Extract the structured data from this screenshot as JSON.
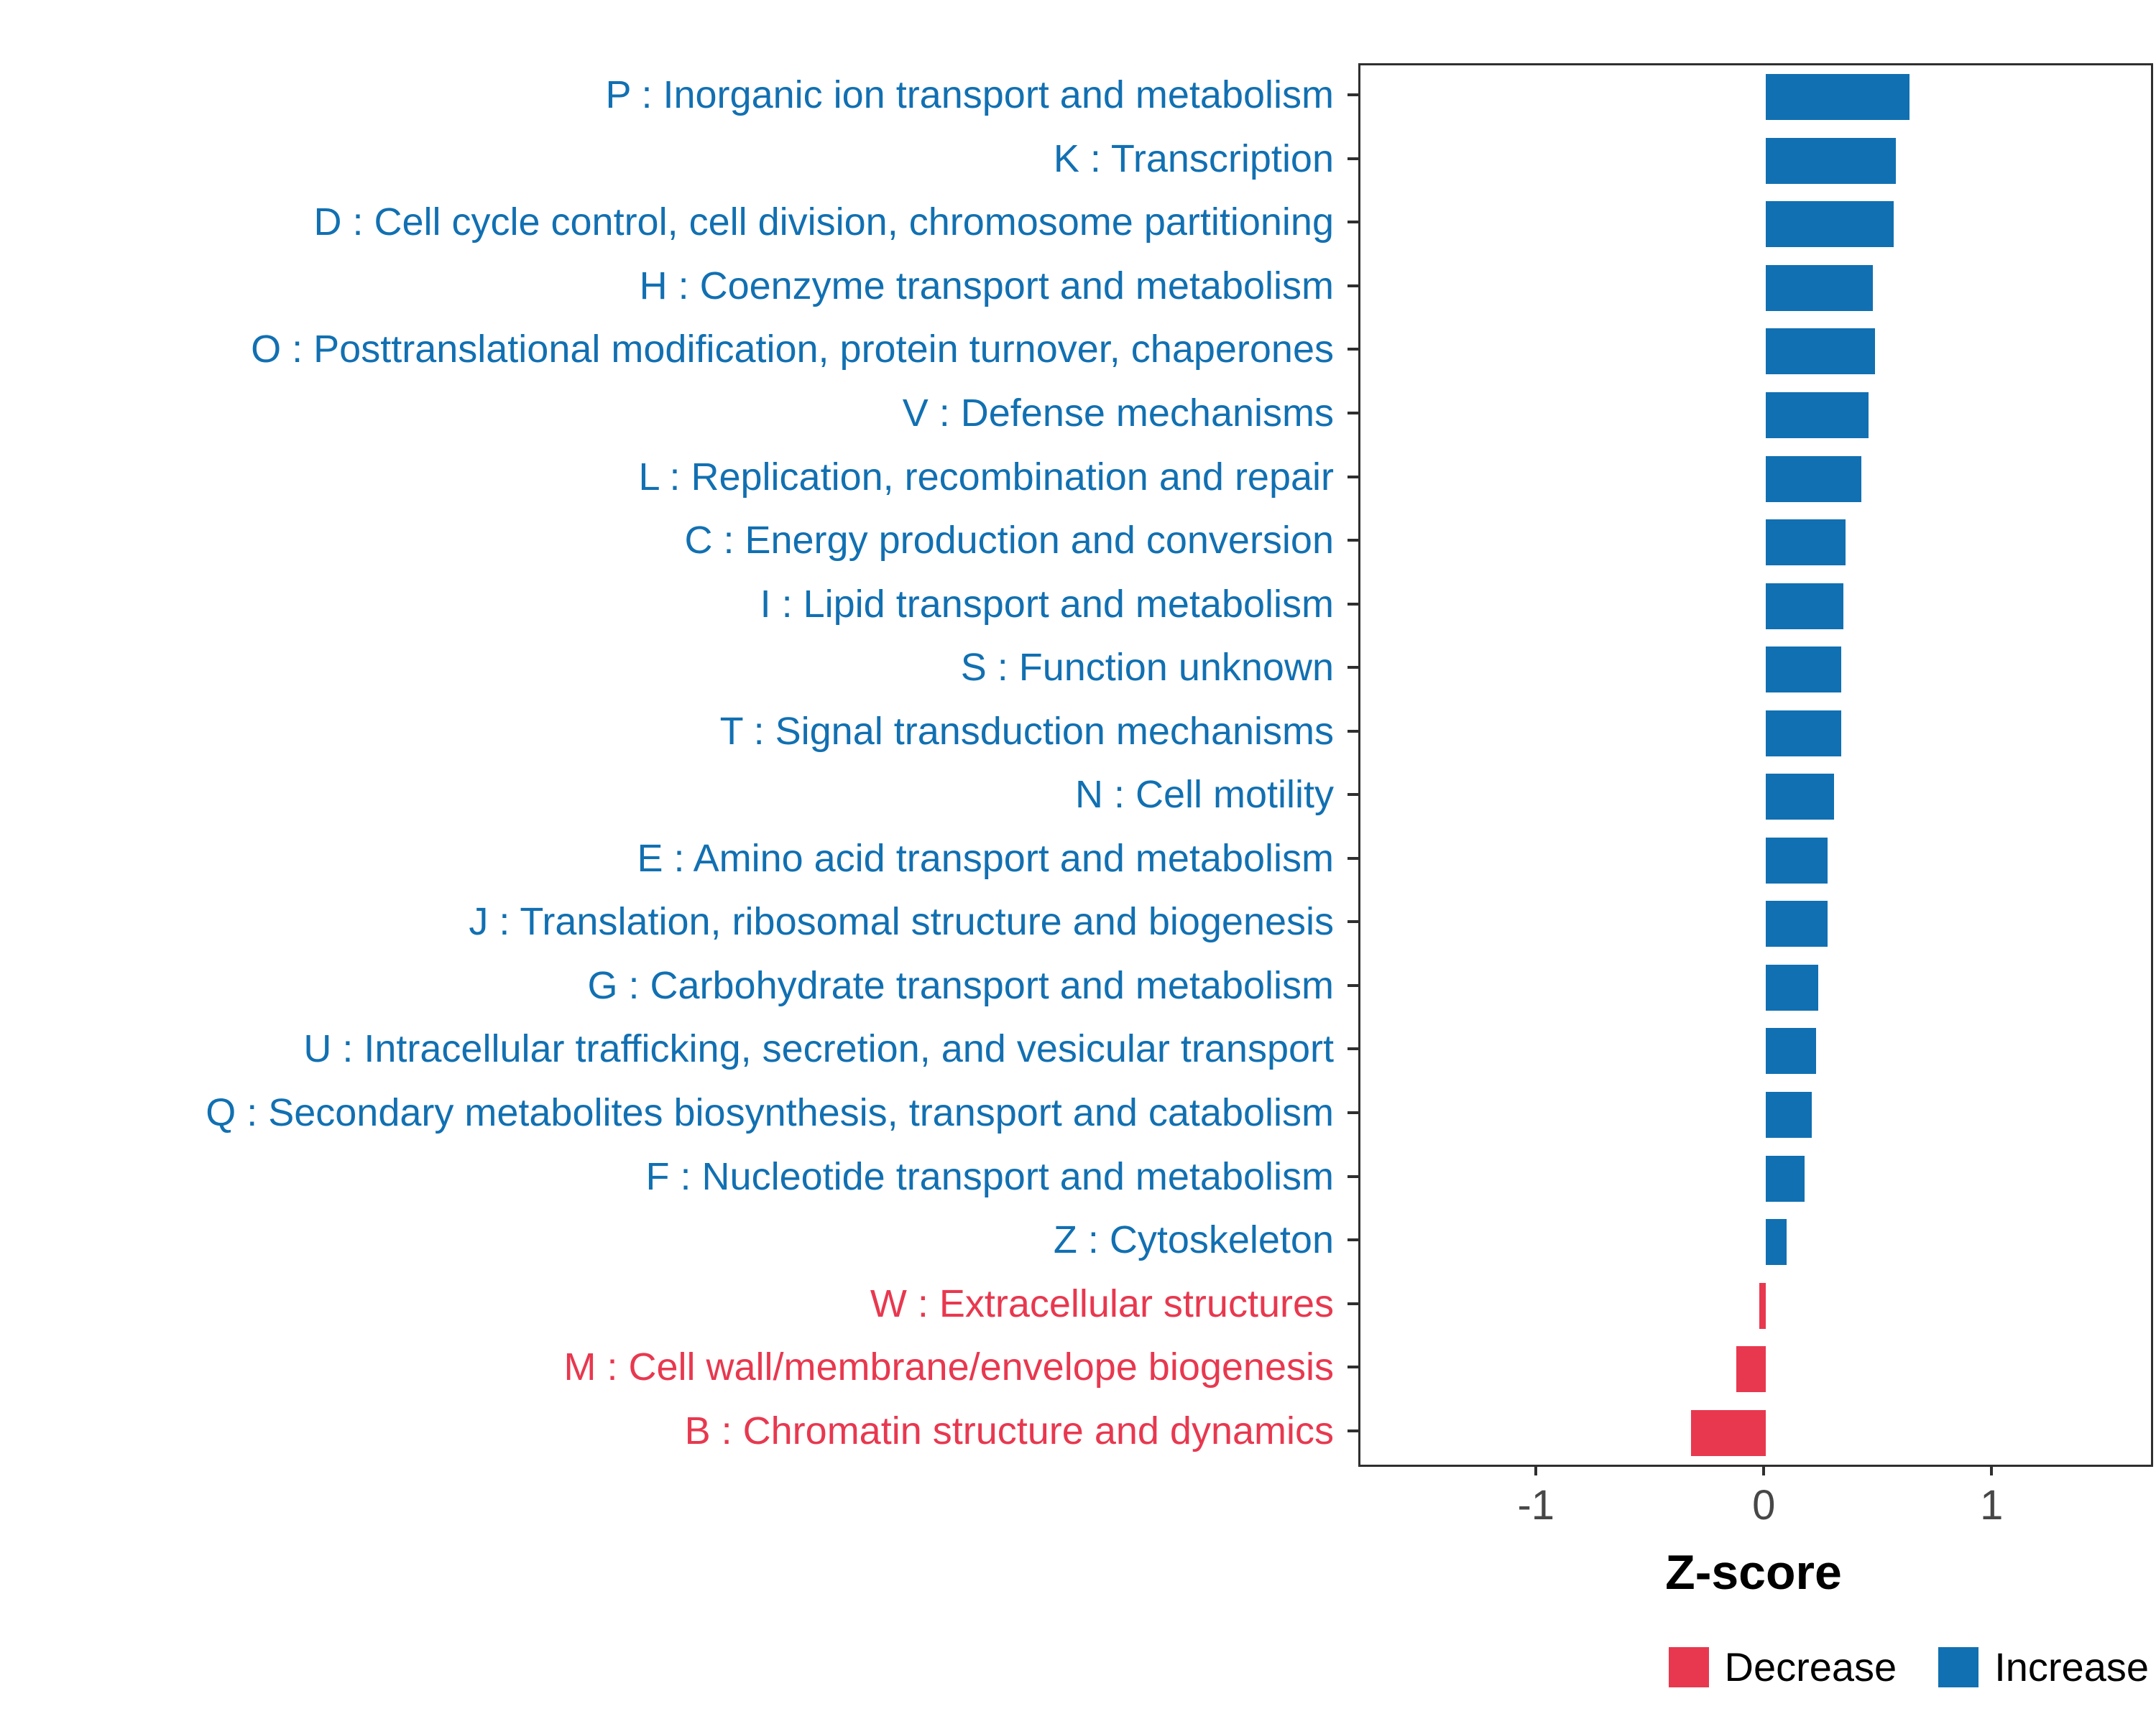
{
  "chart_data": {
    "type": "bar",
    "orientation": "horizontal",
    "title": "",
    "xlabel": "Z-score",
    "ylabel": "",
    "xlim": [
      -1.78,
      1.69
    ],
    "x_ticks": [
      -1,
      0,
      1
    ],
    "grid": false,
    "legend_position": "bottom-right",
    "colors": {
      "increase": "#1170b2",
      "decrease": "#e8384f"
    },
    "categories": [
      {
        "label": "P : Inorganic ion transport and metabolism",
        "value": 0.63,
        "direction": "increase"
      },
      {
        "label": "K : Transcription",
        "value": 0.57,
        "direction": "increase"
      },
      {
        "label": "D : Cell cycle control, cell division, chromosome partitioning",
        "value": 0.56,
        "direction": "increase"
      },
      {
        "label": "H : Coenzyme transport and metabolism",
        "value": 0.47,
        "direction": "increase"
      },
      {
        "label": "O : Posttranslational modification, protein turnover, chaperones",
        "value": 0.48,
        "direction": "increase"
      },
      {
        "label": "V : Defense mechanisms",
        "value": 0.45,
        "direction": "increase"
      },
      {
        "label": "L : Replication, recombination and repair",
        "value": 0.42,
        "direction": "increase"
      },
      {
        "label": "C : Energy production and conversion",
        "value": 0.35,
        "direction": "increase"
      },
      {
        "label": "I : Lipid transport and metabolism",
        "value": 0.34,
        "direction": "increase"
      },
      {
        "label": "S : Function unknown",
        "value": 0.33,
        "direction": "increase"
      },
      {
        "label": "T : Signal transduction mechanisms",
        "value": 0.33,
        "direction": "increase"
      },
      {
        "label": "N : Cell motility",
        "value": 0.3,
        "direction": "increase"
      },
      {
        "label": "E : Amino acid transport and metabolism",
        "value": 0.27,
        "direction": "increase"
      },
      {
        "label": "J : Translation, ribosomal structure and biogenesis",
        "value": 0.27,
        "direction": "increase"
      },
      {
        "label": "G : Carbohydrate transport and metabolism",
        "value": 0.23,
        "direction": "increase"
      },
      {
        "label": "U : Intracellular trafficking, secretion, and vesicular transport",
        "value": 0.22,
        "direction": "increase"
      },
      {
        "label": "Q : Secondary metabolites biosynthesis, transport and catabolism",
        "value": 0.2,
        "direction": "increase"
      },
      {
        "label": "F : Nucleotide transport and metabolism",
        "value": 0.17,
        "direction": "increase"
      },
      {
        "label": "Z : Cytoskeleton",
        "value": 0.09,
        "direction": "increase"
      },
      {
        "label": "W : Extracellular structures",
        "value": -0.03,
        "direction": "decrease"
      },
      {
        "label": "M : Cell wall/membrane/envelope biogenesis",
        "value": -0.13,
        "direction": "decrease"
      },
      {
        "label": "B : Chromatin structure and dynamics",
        "value": -0.33,
        "direction": "decrease"
      }
    ],
    "legend": [
      {
        "label": "Decrease",
        "direction": "decrease"
      },
      {
        "label": "Increase",
        "direction": "increase"
      }
    ]
  }
}
